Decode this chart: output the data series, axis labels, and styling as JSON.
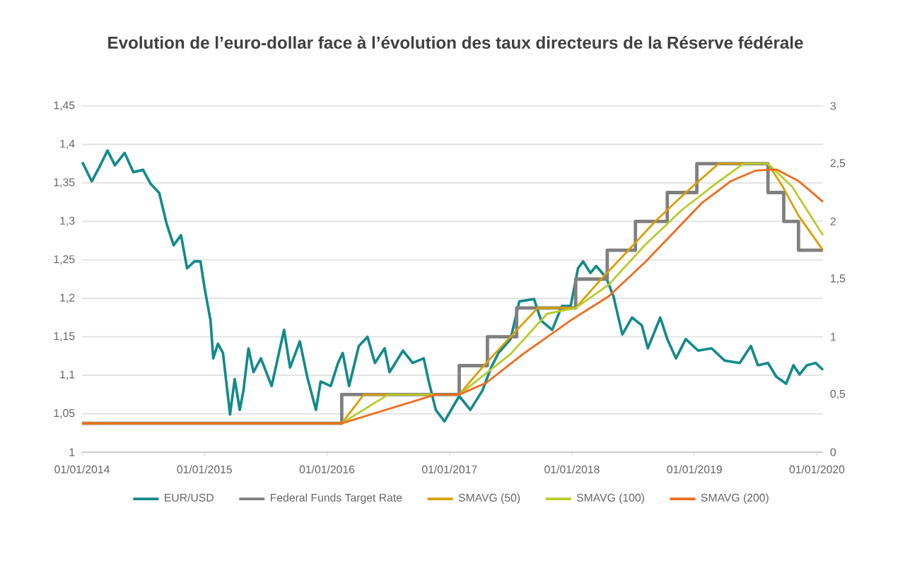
{
  "chart_data": {
    "type": "line",
    "title": "Evolution de l’euro-dollar face à l’évolution des taux directeurs de la Réserve fédérale",
    "xlim": [
      "2014-01-01",
      "2020-01-19"
    ],
    "xticks": [
      {
        "value": "2014-01-01",
        "label": "01/01/2014"
      },
      {
        "value": "2015-01-01",
        "label": "01/01/2015"
      },
      {
        "value": "2016-01-01",
        "label": "01/01/2016"
      },
      {
        "value": "2017-01-01",
        "label": "01/01/2017"
      },
      {
        "value": "2018-01-01",
        "label": "01/01/2018"
      },
      {
        "value": "2019-01-01",
        "label": "01/01/2019"
      },
      {
        "value": "2020-01-01",
        "label": "01/01/2020"
      }
    ],
    "ylim": [
      1,
      1.45
    ],
    "yticks": [
      1,
      {
        "value": 1.05,
        "label": "1,05"
      },
      {
        "value": 1.1,
        "label": "1,1"
      },
      {
        "value": 1.15,
        "label": "1,15"
      },
      {
        "value": 1.2,
        "label": "1,2"
      },
      {
        "value": 1.25,
        "label": "1,25"
      },
      {
        "value": 1.3,
        "label": "1,3"
      },
      {
        "value": 1.35,
        "label": "1,35"
      },
      {
        "value": 1.4,
        "label": "1,4"
      },
      {
        "value": 1.45,
        "label": "1,45"
      }
    ],
    "y2lim": [
      0,
      3
    ],
    "y2ticks": [
      0,
      {
        "value": 0.5,
        "label": "0,5"
      },
      1,
      {
        "value": 1.5,
        "label": "1,5"
      },
      2,
      {
        "value": 2.5,
        "label": "2,5"
      },
      3
    ],
    "grid": "y",
    "legend": "bottom",
    "series": [
      {
        "name": "EUR/USD",
        "color": "#138a8a",
        "type": "line",
        "x": [
          "2014-01-02",
          "2014-01-30",
          "2014-02-21",
          "2014-03-18",
          "2014-04-09",
          "2014-05-08",
          "2014-06-03",
          "2014-07-02",
          "2014-07-24",
          "2014-08-19",
          "2014-09-10",
          "2014-10-01",
          "2014-10-23",
          "2014-11-10",
          "2014-12-02",
          "2014-12-20",
          "2015-01-01",
          "2015-01-19",
          "2015-01-27",
          "2015-02-10",
          "2015-02-25",
          "2015-03-18",
          "2015-04-01",
          "2015-04-16",
          "2015-04-27",
          "2015-05-12",
          "2015-05-27",
          "2015-06-18",
          "2015-07-20",
          "2015-08-26",
          "2015-09-13",
          "2015-10-12",
          "2015-11-03",
          "2015-11-29",
          "2015-12-13",
          "2016-01-12",
          "2016-02-03",
          "2016-02-17",
          "2016-03-07",
          "2016-04-05",
          "2016-05-01",
          "2016-05-23",
          "2016-06-21",
          "2016-07-06",
          "2016-08-15",
          "2016-09-13",
          "2016-10-16",
          "2016-10-31",
          "2016-11-21",
          "2016-12-17",
          "2017-01-30",
          "2017-03-04",
          "2017-04-09",
          "2017-05-05",
          "2017-05-27",
          "2017-07-02",
          "2017-07-28",
          "2017-09-10",
          "2017-10-01",
          "2017-11-03",
          "2017-12-02",
          "2017-12-28",
          "2018-01-19",
          "2018-02-03",
          "2018-02-25",
          "2018-03-14",
          "2018-04-13",
          "2018-05-05",
          "2018-05-31",
          "2018-06-29",
          "2018-07-28",
          "2018-08-15",
          "2018-09-21",
          "2018-10-12",
          "2018-11-07",
          "2018-12-06",
          "2019-01-12",
          "2019-02-21",
          "2019-04-01",
          "2019-05-16",
          "2019-06-18",
          "2019-07-09",
          "2019-08-08",
          "2019-09-02",
          "2019-10-01",
          "2019-10-23",
          "2019-11-10",
          "2019-12-02",
          "2019-12-28",
          "2020-01-19"
        ],
        "values": [
          1.377,
          1.352,
          1.37,
          1.392,
          1.373,
          1.389,
          1.364,
          1.367,
          1.349,
          1.337,
          1.297,
          1.269,
          1.282,
          1.239,
          1.248,
          1.248,
          1.214,
          1.171,
          1.122,
          1.141,
          1.129,
          1.049,
          1.095,
          1.055,
          1.08,
          1.135,
          1.104,
          1.122,
          1.086,
          1.159,
          1.11,
          1.144,
          1.098,
          1.055,
          1.092,
          1.086,
          1.116,
          1.129,
          1.086,
          1.138,
          1.15,
          1.116,
          1.135,
          1.104,
          1.132,
          1.116,
          1.122,
          1.092,
          1.055,
          1.04,
          1.073,
          1.055,
          1.08,
          1.11,
          1.129,
          1.147,
          1.196,
          1.199,
          1.171,
          1.159,
          1.19,
          1.19,
          1.239,
          1.248,
          1.233,
          1.242,
          1.227,
          1.202,
          1.153,
          1.175,
          1.165,
          1.135,
          1.175,
          1.147,
          1.122,
          1.147,
          1.132,
          1.135,
          1.119,
          1.116,
          1.138,
          1.113,
          1.116,
          1.098,
          1.089,
          1.113,
          1.101,
          1.113,
          1.116,
          1.107
        ]
      },
      {
        "name": "Federal Funds Target Rate",
        "color": "#808080",
        "type": "step",
        "axis": "y2",
        "x": [
          "2014-01-01",
          "2016-02-14",
          "2017-01-30",
          "2017-04-24",
          "2017-07-20",
          "2018-01-12",
          "2018-04-16",
          "2018-07-09",
          "2018-10-12",
          "2019-01-08",
          "2019-08-08",
          "2019-09-24",
          "2019-11-07",
          "2020-01-19"
        ],
        "values": [
          0.25,
          0.5,
          0.75,
          1.0,
          1.25,
          1.5,
          1.75,
          2.0,
          2.25,
          2.5,
          2.25,
          2.0,
          1.75,
          1.75
        ]
      },
      {
        "name": "SMAVG (50)",
        "color": "#d9a000",
        "type": "line",
        "axis": "y2",
        "x": [
          "2014-01-01",
          "2016-02-14",
          "2016-04-20",
          "2017-01-30",
          "2017-04-13",
          "2017-07-02",
          "2017-09-21",
          "2018-01-12",
          "2018-03-29",
          "2018-06-18",
          "2018-09-06",
          "2018-12-06",
          "2019-03-14",
          "2019-08-08",
          "2019-09-21",
          "2019-11-07",
          "2020-01-19"
        ],
        "values": [
          0.25,
          0.25,
          0.5,
          0.5,
          0.75,
          1.0,
          1.25,
          1.25,
          1.5,
          1.75,
          2.0,
          2.25,
          2.5,
          2.5,
          2.3,
          2.05,
          1.75
        ]
      },
      {
        "name": "SMAVG (100)",
        "color": "#b8cc2a",
        "type": "line",
        "axis": "y2",
        "x": [
          "2014-01-01",
          "2016-02-14",
          "2016-07-02",
          "2017-01-30",
          "2017-07-02",
          "2017-10-19",
          "2018-01-12",
          "2018-04-20",
          "2018-08-08",
          "2018-11-25",
          "2019-03-07",
          "2019-05-27",
          "2019-08-08",
          "2019-10-19",
          "2020-01-19"
        ],
        "values": [
          0.25,
          0.25,
          0.5,
          0.5,
          0.85,
          1.2,
          1.25,
          1.45,
          1.8,
          2.1,
          2.33,
          2.5,
          2.5,
          2.3,
          1.88
        ]
      },
      {
        "name": "SMAVG (200)",
        "color": "#f26b1d",
        "type": "line",
        "axis": "y2",
        "x": [
          "2014-01-01",
          "2016-02-14",
          "2016-11-21",
          "2017-01-30",
          "2017-04-20",
          "2017-08-08",
          "2018-01-01",
          "2018-04-20",
          "2018-08-08",
          "2018-11-25",
          "2019-01-23",
          "2019-04-20",
          "2019-07-02",
          "2019-09-02",
          "2019-11-07",
          "2020-01-19"
        ],
        "values": [
          0.25,
          0.25,
          0.5,
          0.5,
          0.6,
          0.85,
          1.15,
          1.35,
          1.65,
          1.98,
          2.16,
          2.35,
          2.44,
          2.45,
          2.35,
          2.17
        ]
      }
    ]
  }
}
